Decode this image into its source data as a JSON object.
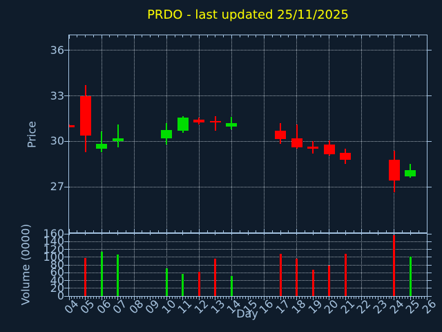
{
  "title": "PRDO - last updated 25/11/2025",
  "colors": {
    "background": "#0f1c2b",
    "spine": "#a3c2e0",
    "text": "#a7c4e0",
    "grid": "#b9c3cd",
    "title": "#ffff00",
    "up": "#00dd00",
    "down": "#ff0000"
  },
  "chart_data": {
    "type": "candlestick",
    "title": "PRDO - last updated 25/11/2025",
    "xlabel": "Day",
    "xlim": [
      4,
      26
    ],
    "x_tick_labels": [
      "04",
      "05",
      "06",
      "07",
      "08",
      "09",
      "10",
      "11",
      "12",
      "13",
      "14",
      "15",
      "16",
      "17",
      "18",
      "19",
      "20",
      "21",
      "22",
      "23",
      "24",
      "25",
      "26"
    ],
    "grid_days": [
      6,
      8,
      10,
      12,
      14,
      16,
      18,
      20,
      22,
      24
    ],
    "panels": [
      {
        "name": "price",
        "ylabel": "Price",
        "ylim": [
          24,
          37
        ],
        "yticks": [
          27,
          30,
          33,
          36
        ],
        "grid": "dotted"
      },
      {
        "name": "volume",
        "ylabel": "Volume (0000)",
        "ylim": [
          0,
          160
        ],
        "yticks": [
          0,
          20,
          40,
          60,
          80,
          100,
          120,
          140,
          160
        ],
        "grid": "dotted"
      }
    ],
    "candles": [
      {
        "day": 4,
        "open": 31.05,
        "high": 31.1,
        "low": 31.0,
        "close": 31.0,
        "volume": 0
      },
      {
        "day": 5,
        "open": 33.0,
        "high": 33.7,
        "low": 29.3,
        "close": 30.4,
        "volume": 98
      },
      {
        "day": 6,
        "open": 29.5,
        "high": 30.65,
        "low": 29.3,
        "close": 29.85,
        "volume": 113
      },
      {
        "day": 7,
        "open": 30.0,
        "high": 31.1,
        "low": 29.6,
        "close": 30.2,
        "volume": 106
      },
      {
        "day": 10,
        "open": 30.2,
        "high": 31.2,
        "low": 29.8,
        "close": 30.75,
        "volume": 72
      },
      {
        "day": 11,
        "open": 30.7,
        "high": 31.65,
        "low": 30.55,
        "close": 31.55,
        "volume": 57
      },
      {
        "day": 12,
        "open": 31.45,
        "high": 31.55,
        "low": 31.1,
        "close": 31.25,
        "volume": 63
      },
      {
        "day": 13,
        "open": 31.35,
        "high": 31.65,
        "low": 30.7,
        "close": 31.25,
        "volume": 96
      },
      {
        "day": 14,
        "open": 31.0,
        "high": 31.6,
        "low": 30.8,
        "close": 31.2,
        "volume": 51
      },
      {
        "day": 17,
        "open": 30.7,
        "high": 31.2,
        "low": 29.85,
        "close": 30.15,
        "volume": 108
      },
      {
        "day": 18,
        "open": 30.2,
        "high": 31.1,
        "low": 29.5,
        "close": 29.6,
        "volume": 96
      },
      {
        "day": 19,
        "open": 29.65,
        "high": 30.0,
        "low": 29.2,
        "close": 29.5,
        "volume": 68
      },
      {
        "day": 20,
        "open": 29.8,
        "high": 30.05,
        "low": 29.05,
        "close": 29.15,
        "volume": 78
      },
      {
        "day": 21,
        "open": 29.25,
        "high": 29.5,
        "low": 28.5,
        "close": 28.8,
        "volume": 109
      },
      {
        "day": 24,
        "open": 28.8,
        "high": 29.4,
        "low": 26.65,
        "close": 27.4,
        "volume": 157
      },
      {
        "day": 25,
        "open": 27.7,
        "high": 28.5,
        "low": 27.6,
        "close": 28.1,
        "volume": 101
      }
    ]
  }
}
